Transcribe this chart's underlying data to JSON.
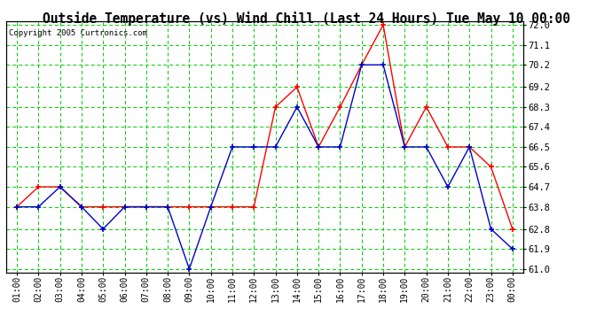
{
  "title": "Outside Temperature (vs) Wind Chill (Last 24 Hours) Tue May 10 00:00",
  "copyright": "Copyright 2005 Curtronics.com",
  "hours": [
    "01:00",
    "02:00",
    "03:00",
    "04:00",
    "05:00",
    "06:00",
    "07:00",
    "08:00",
    "09:00",
    "10:00",
    "11:00",
    "12:00",
    "13:00",
    "14:00",
    "15:00",
    "16:00",
    "17:00",
    "18:00",
    "19:00",
    "20:00",
    "21:00",
    "22:00",
    "23:00",
    "00:00"
  ],
  "outside_temp": [
    63.8,
    64.7,
    64.7,
    63.8,
    63.8,
    63.8,
    63.8,
    63.8,
    63.8,
    63.8,
    63.8,
    63.8,
    68.3,
    69.2,
    66.5,
    68.3,
    70.2,
    72.0,
    66.5,
    68.3,
    66.5,
    66.5,
    65.6,
    62.8
  ],
  "wind_chill": [
    63.8,
    63.8,
    64.7,
    63.8,
    62.8,
    63.8,
    63.8,
    63.8,
    61.0,
    63.8,
    66.5,
    66.5,
    66.5,
    68.3,
    66.5,
    66.5,
    70.2,
    70.2,
    66.5,
    66.5,
    64.7,
    66.5,
    62.8,
    61.9
  ],
  "temp_color": "#ff0000",
  "chill_color": "#0000cc",
  "background": "#ffffff",
  "plot_bg": "#ffffff",
  "grid_color": "#00cc00",
  "ymin": 61.0,
  "ymax": 72.0,
  "yticks": [
    61.0,
    61.9,
    62.8,
    63.8,
    64.7,
    65.6,
    66.5,
    67.4,
    68.3,
    69.2,
    70.2,
    71.1,
    72.0
  ]
}
